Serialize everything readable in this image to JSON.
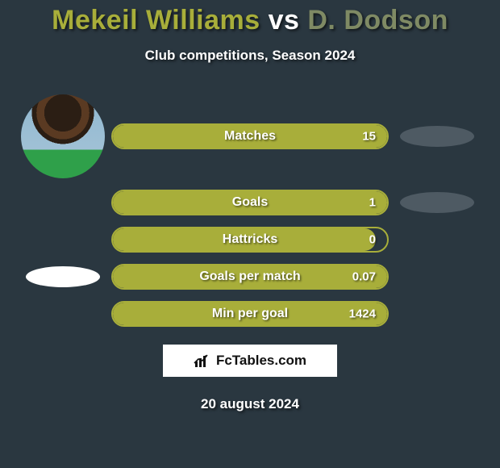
{
  "title": {
    "player1": "Mekeil Williams",
    "vs": "vs",
    "player2": "D. Dodson",
    "player1_color": "#a8ae3a",
    "vs_color": "#ffffff",
    "player2_color": "#7f8a64"
  },
  "subtitle": "Club competitions, Season 2024",
  "accent_color": "#a8ae3a",
  "background_color": "#2a3740",
  "pill_left_color": "#ffffff",
  "pill_right_color": "#4e5a63",
  "rows": [
    {
      "label": "Matches",
      "value": "15",
      "fill_pct": 100,
      "left_slot": "avatar",
      "right_slot": "pill"
    },
    {
      "label": "Goals",
      "value": "1",
      "fill_pct": 100,
      "left_slot": "none",
      "right_slot": "pill"
    },
    {
      "label": "Hattricks",
      "value": "0",
      "fill_pct": 96,
      "left_slot": "none",
      "right_slot": "none"
    },
    {
      "label": "Goals per match",
      "value": "0.07",
      "fill_pct": 100,
      "left_slot": "pill",
      "right_slot": "none"
    },
    {
      "label": "Min per goal",
      "value": "1424",
      "fill_pct": 100,
      "left_slot": "none",
      "right_slot": "none"
    }
  ],
  "logo_text": "FcTables.com",
  "date": "20 august 2024"
}
